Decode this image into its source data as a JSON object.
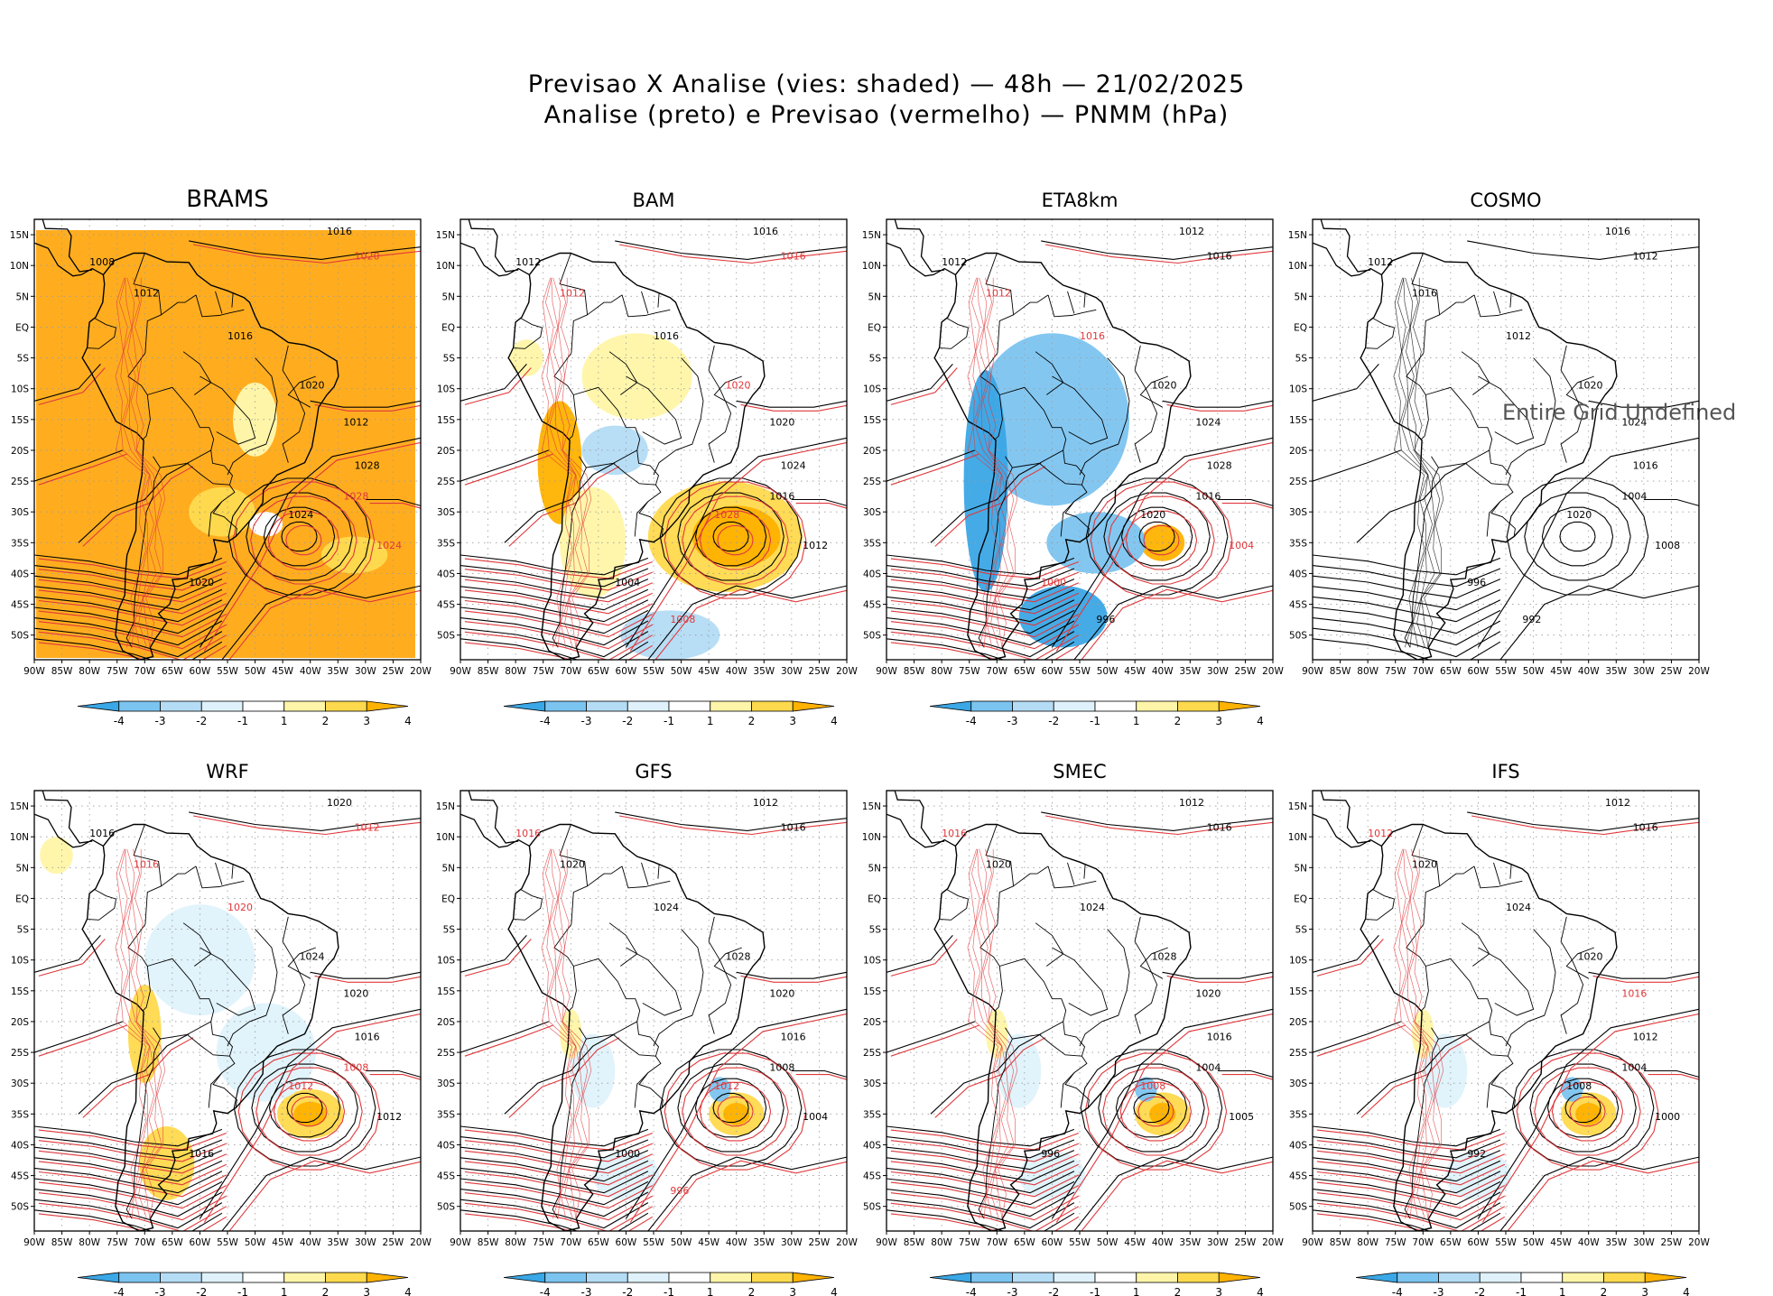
{
  "title": {
    "line1": "Previsao X Analise (vies: shaded) — 48h — 21/02/2025",
    "line2": "Analise (preto) e Previsao (vermelho) — PNMM (hPa)"
  },
  "axes": {
    "lat_labels": [
      "15N",
      "10N",
      "5N",
      "EQ",
      "5S",
      "10S",
      "15S",
      "20S",
      "25S",
      "30S",
      "35S",
      "40S",
      "45S",
      "50S"
    ],
    "lon_labels": [
      "90W",
      "85W",
      "80W",
      "75W",
      "70W",
      "65W",
      "60W",
      "55W",
      "50W",
      "45W",
      "40W",
      "35W",
      "30W",
      "25W",
      "20W"
    ]
  },
  "colorbar": {
    "labels": [
      "-4",
      "-3",
      "-2",
      "-1",
      "1",
      "2",
      "3",
      "4"
    ],
    "colors": [
      "#3aa7e6",
      "#7cc4f0",
      "#b4dcf5",
      "#dff2fb",
      "#ffffff",
      "#fff5a8",
      "#ffd94d",
      "#ffb200"
    ]
  },
  "colors": {
    "analysis_contour": "#000000",
    "forecast_contour": "#e0383b",
    "land_outline": "#000000"
  },
  "panels": [
    {
      "name": "BRAMS",
      "shading": "positive",
      "has_colorbar": true,
      "isobars": [
        {
          "value": "1016",
          "color": "black"
        },
        {
          "value": "1020",
          "color": "red"
        },
        {
          "value": "1008",
          "color": "black"
        },
        {
          "value": "1012",
          "color": "black"
        },
        {
          "value": "1016",
          "color": "black"
        },
        {
          "value": "1020",
          "color": "black"
        },
        {
          "value": "1012",
          "color": "black"
        },
        {
          "value": "1028",
          "color": "black"
        },
        {
          "value": "1024",
          "color": "black"
        },
        {
          "value": "1028",
          "color": "red"
        },
        {
          "value": "1024",
          "color": "red"
        },
        {
          "value": "1020",
          "color": "black"
        }
      ]
    },
    {
      "name": "BAM",
      "shading": "mixed",
      "has_colorbar": true,
      "isobars": [
        {
          "value": "1016",
          "color": "black"
        },
        {
          "value": "1016",
          "color": "red"
        },
        {
          "value": "1012",
          "color": "black"
        },
        {
          "value": "1012",
          "color": "red"
        },
        {
          "value": "1016",
          "color": "black"
        },
        {
          "value": "1020",
          "color": "red"
        },
        {
          "value": "1020",
          "color": "black"
        },
        {
          "value": "1024",
          "color": "black"
        },
        {
          "value": "1028",
          "color": "red"
        },
        {
          "value": "1016",
          "color": "black"
        },
        {
          "value": "1012",
          "color": "black"
        },
        {
          "value": "1004",
          "color": "black"
        },
        {
          "value": "1008",
          "color": "red"
        }
      ]
    },
    {
      "name": "ETA8km",
      "shading": "negative",
      "has_colorbar": true,
      "isobars": [
        {
          "value": "1012",
          "color": "black"
        },
        {
          "value": "1016",
          "color": "black"
        },
        {
          "value": "1012",
          "color": "black"
        },
        {
          "value": "1012",
          "color": "red"
        },
        {
          "value": "1016",
          "color": "red"
        },
        {
          "value": "1020",
          "color": "black"
        },
        {
          "value": "1024",
          "color": "black"
        },
        {
          "value": "1028",
          "color": "black"
        },
        {
          "value": "1020",
          "color": "black"
        },
        {
          "value": "1016",
          "color": "black"
        },
        {
          "value": "1004",
          "color": "red"
        },
        {
          "value": "1000",
          "color": "red"
        },
        {
          "value": "996",
          "color": "black"
        }
      ]
    },
    {
      "name": "COSMO",
      "shading": "none",
      "has_colorbar": false,
      "undefined_label": "Entire Grid Undefined",
      "isobars": [
        {
          "value": "1016",
          "color": "black"
        },
        {
          "value": "1012",
          "color": "black"
        },
        {
          "value": "1012",
          "color": "black"
        },
        {
          "value": "1016",
          "color": "black"
        },
        {
          "value": "1012",
          "color": "black"
        },
        {
          "value": "1020",
          "color": "black"
        },
        {
          "value": "1024",
          "color": "black"
        },
        {
          "value": "1016",
          "color": "black"
        },
        {
          "value": "1020",
          "color": "black"
        },
        {
          "value": "1004",
          "color": "black"
        },
        {
          "value": "1008",
          "color": "black"
        },
        {
          "value": "996",
          "color": "black"
        },
        {
          "value": "992",
          "color": "black"
        }
      ]
    },
    {
      "name": "WRF",
      "shading": "mixed-neg",
      "has_colorbar": true,
      "isobars": [
        {
          "value": "1020",
          "color": "black"
        },
        {
          "value": "1012",
          "color": "red"
        },
        {
          "value": "1016",
          "color": "black"
        },
        {
          "value": "1016",
          "color": "red"
        },
        {
          "value": "1020",
          "color": "red"
        },
        {
          "value": "1024",
          "color": "black"
        },
        {
          "value": "1020",
          "color": "black"
        },
        {
          "value": "1016",
          "color": "black"
        },
        {
          "value": "1012",
          "color": "red"
        },
        {
          "value": "1008",
          "color": "red"
        },
        {
          "value": "1012",
          "color": "black"
        },
        {
          "value": "1016",
          "color": "black"
        }
      ]
    },
    {
      "name": "GFS",
      "shading": "light",
      "has_colorbar": true,
      "isobars": [
        {
          "value": "1012",
          "color": "black"
        },
        {
          "value": "1016",
          "color": "black"
        },
        {
          "value": "1016",
          "color": "red"
        },
        {
          "value": "1020",
          "color": "black"
        },
        {
          "value": "1024",
          "color": "black"
        },
        {
          "value": "1028",
          "color": "black"
        },
        {
          "value": "1020",
          "color": "black"
        },
        {
          "value": "1016",
          "color": "black"
        },
        {
          "value": "1012",
          "color": "red"
        },
        {
          "value": "1008",
          "color": "black"
        },
        {
          "value": "1004",
          "color": "black"
        },
        {
          "value": "1000",
          "color": "black"
        },
        {
          "value": "996",
          "color": "red"
        }
      ]
    },
    {
      "name": "SMEC",
      "shading": "light",
      "has_colorbar": true,
      "isobars": [
        {
          "value": "1012",
          "color": "black"
        },
        {
          "value": "1016",
          "color": "black"
        },
        {
          "value": "1016",
          "color": "red"
        },
        {
          "value": "1020",
          "color": "black"
        },
        {
          "value": "1024",
          "color": "black"
        },
        {
          "value": "1028",
          "color": "black"
        },
        {
          "value": "1020",
          "color": "black"
        },
        {
          "value": "1016",
          "color": "black"
        },
        {
          "value": "1008",
          "color": "red"
        },
        {
          "value": "1004",
          "color": "black"
        },
        {
          "value": "1005",
          "color": "black"
        },
        {
          "value": "996",
          "color": "black"
        }
      ]
    },
    {
      "name": "IFS",
      "shading": "light",
      "has_colorbar": true,
      "isobars": [
        {
          "value": "1012",
          "color": "black"
        },
        {
          "value": "1016",
          "color": "black"
        },
        {
          "value": "1012",
          "color": "red"
        },
        {
          "value": "1020",
          "color": "black"
        },
        {
          "value": "1024",
          "color": "black"
        },
        {
          "value": "1020",
          "color": "black"
        },
        {
          "value": "1016",
          "color": "red"
        },
        {
          "value": "1012",
          "color": "black"
        },
        {
          "value": "1008",
          "color": "black"
        },
        {
          "value": "1004",
          "color": "black"
        },
        {
          "value": "1000",
          "color": "black"
        },
        {
          "value": "992",
          "color": "black"
        }
      ]
    }
  ]
}
